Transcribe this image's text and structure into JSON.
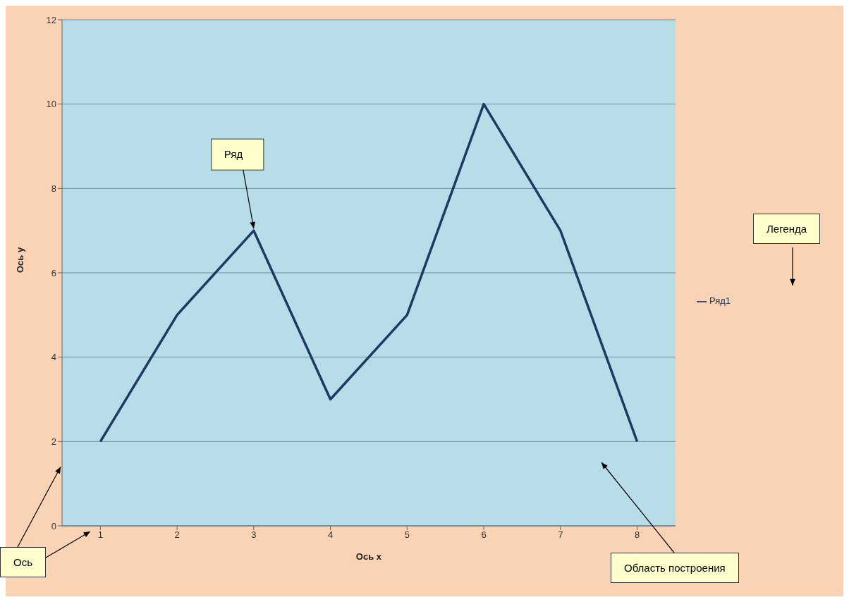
{
  "chart_data": {
    "type": "line",
    "xlabel": "Ось x",
    "ylabel": "Ось y",
    "categories": [
      "1",
      "2",
      "3",
      "4",
      "5",
      "6",
      "7",
      "8"
    ],
    "series": [
      {
        "name": "Ряд1",
        "color": "#1f3864",
        "values": [
          2,
          5,
          7,
          3,
          5,
          10,
          7,
          2
        ]
      }
    ],
    "ylim": [
      0,
      12
    ],
    "yticks": [
      0,
      2,
      4,
      6,
      8,
      10,
      12
    ],
    "grid": "y",
    "legend": "right",
    "marker": "none",
    "line_style": "solid",
    "annotations": [
      {
        "text": "Ряд",
        "x": "3",
        "y": 7
      },
      "Легенда",
      "Ось",
      "Область построения"
    ]
  }
}
